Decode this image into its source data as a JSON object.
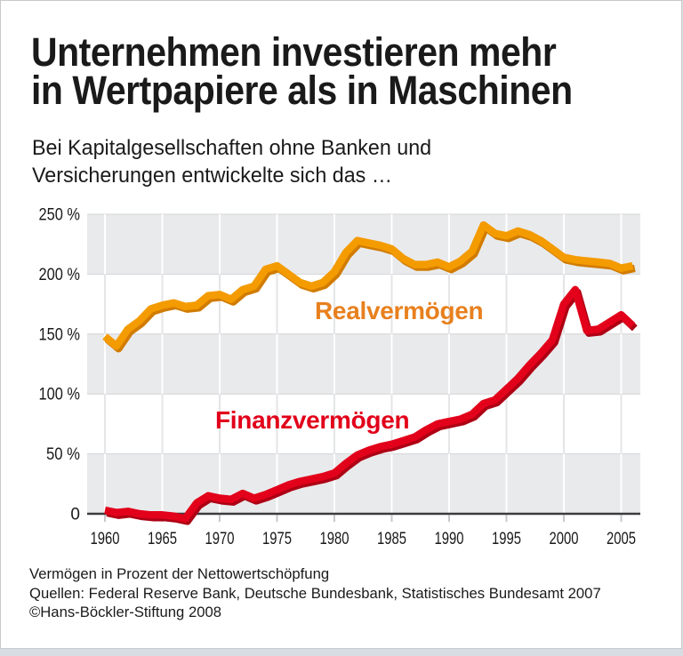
{
  "header": {
    "title_line1": "Unternehmen investieren mehr",
    "title_line2": "in Wertpapiere als in Maschinen",
    "subtitle_line1": "Bei Kapitalgesellschaften ohne Banken und",
    "subtitle_line2": "Versicherungen entwickelte sich das …"
  },
  "footer": {
    "note": "Vermögen in Prozent der Nettowertschöpfung",
    "sources": "Quellen: Federal Reserve Bank, Deutsche Bundesbank, Statistisches Bundesamt 2007",
    "copyright": "©Hans-Böckler-Stiftung 2008"
  },
  "chart_data": {
    "type": "line",
    "title": "Unternehmen investieren mehr in Wertpapiere als in Maschinen",
    "ylim": [
      0,
      250
    ],
    "x_years": [
      1960,
      1961,
      1962,
      1963,
      1964,
      1965,
      1966,
      1967,
      1968,
      1969,
      1970,
      1971,
      1972,
      1973,
      1974,
      1975,
      1976,
      1977,
      1978,
      1979,
      1980,
      1981,
      1982,
      1983,
      1984,
      1985,
      1986,
      1987,
      1988,
      1989,
      1990,
      1991,
      1992,
      1993,
      1994,
      1995,
      1996,
      1997,
      1998,
      1999,
      2000,
      2001,
      2002,
      2003,
      2004,
      2005,
      2006
    ],
    "xticks": [
      1960,
      1965,
      1970,
      1975,
      1980,
      1985,
      1990,
      1995,
      2000,
      2005
    ],
    "yticks": [
      {
        "value": 0,
        "label": "0"
      },
      {
        "value": 50,
        "label": "50 %"
      },
      {
        "value": 100,
        "label": "100 %"
      },
      {
        "value": 150,
        "label": "150 %"
      },
      {
        "value": 200,
        "label": "200 %"
      },
      {
        "value": 250,
        "label": "250 %"
      }
    ],
    "series": [
      {
        "id": "realvermoegen",
        "label": "Realvermögen",
        "color": "#F49B00",
        "shadow_color": "#D17C00",
        "label_color": "#E8801E",
        "values": [
          148,
          140,
          154,
          161,
          171,
          174,
          176,
          173,
          174,
          182,
          183,
          179,
          187,
          190,
          204,
          207,
          200,
          193,
          190,
          193,
          202,
          218,
          228,
          226,
          224,
          221,
          213,
          208,
          208,
          210,
          206,
          211,
          219,
          241,
          234,
          232,
          236,
          233,
          228,
          221,
          214,
          212,
          211,
          210,
          209,
          205,
          207
        ]
      },
      {
        "id": "finanzvermoegen",
        "label": "Finanzvermögen",
        "color": "#E2001A",
        "shadow_color": "#AD0014",
        "label_color": "#E2001A",
        "values": [
          3,
          1,
          2,
          0,
          -1,
          -1,
          -2,
          -4,
          9,
          15,
          13,
          12,
          17,
          13,
          16,
          20,
          24,
          27,
          29,
          31,
          34,
          42,
          49,
          53,
          56,
          58,
          61,
          64,
          70,
          75,
          77,
          79,
          83,
          92,
          95,
          104,
          113,
          124,
          134,
          145,
          175,
          187,
          153,
          154,
          160,
          166,
          157
        ]
      }
    ],
    "grid": {
      "band_color": "#e9eaec",
      "grid_on_band": "#ffffff",
      "grid_on_white": "#e4e5e7",
      "axis_color": "#3b3b3d",
      "tick_color": "#c6c8cb",
      "text_color": "#1a1a1a"
    }
  }
}
